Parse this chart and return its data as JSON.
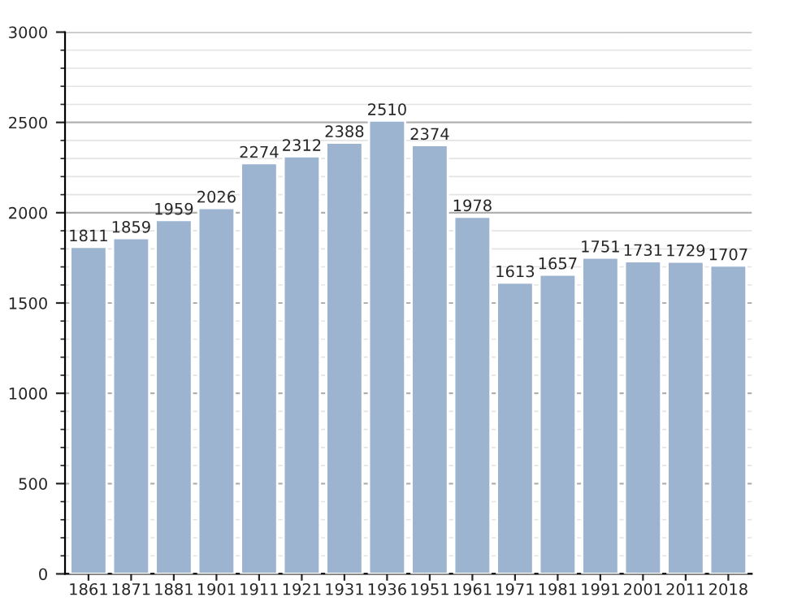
{
  "chart_data": {
    "type": "bar",
    "categories": [
      "1861",
      "1871",
      "1881",
      "1901",
      "1911",
      "1921",
      "1931",
      "1936",
      "1951",
      "1961",
      "1971",
      "1981",
      "1991",
      "2001",
      "2011",
      "2018"
    ],
    "values": [
      1811,
      1859,
      1959,
      2026,
      2274,
      2312,
      2388,
      2510,
      2374,
      1978,
      1613,
      1657,
      1751,
      1731,
      1729,
      1707
    ],
    "color": "#9db4d1",
    "ylim": [
      0,
      3000
    ],
    "yticks": [
      0,
      500,
      1000,
      1500,
      2000,
      2500,
      3000
    ],
    "grid": "y",
    "data_labels": true
  }
}
